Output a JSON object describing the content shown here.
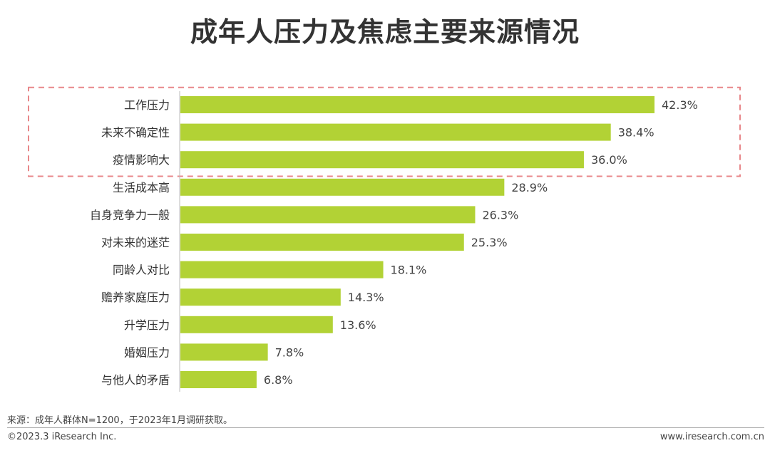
{
  "title": "成年人压力及焦虑主要来源情况",
  "chart_data": {
    "type": "bar",
    "orientation": "horizontal",
    "categories": [
      "工作压力",
      "未来不确定性",
      "疫情影响大",
      "生活成本高",
      "自身竞争力一般",
      "对未来的迷茫",
      "同龄人对比",
      "赡养家庭压力",
      "升学压力",
      "婚姻压力",
      "与他人的矛盾"
    ],
    "values": [
      42.3,
      38.4,
      36.0,
      28.9,
      26.3,
      25.3,
      18.1,
      14.3,
      13.6,
      7.8,
      6.8
    ],
    "value_labels": [
      "42.3%",
      "38.4%",
      "36.0%",
      "28.9%",
      "26.3%",
      "25.3%",
      "18.1%",
      "14.3%",
      "13.6%",
      "7.8%",
      "6.8%"
    ],
    "unit": "%",
    "xlim": [
      0,
      50
    ],
    "highlighted_count": 3,
    "bar_color": "#b2d235",
    "highlight_border_color": "#e8878a"
  },
  "footer": {
    "source": "来源：成年人群体N=1200，于2023年1月调研获取。",
    "copyright": "©2023.3 iResearch Inc.",
    "website": "www.iresearch.com.cn"
  }
}
